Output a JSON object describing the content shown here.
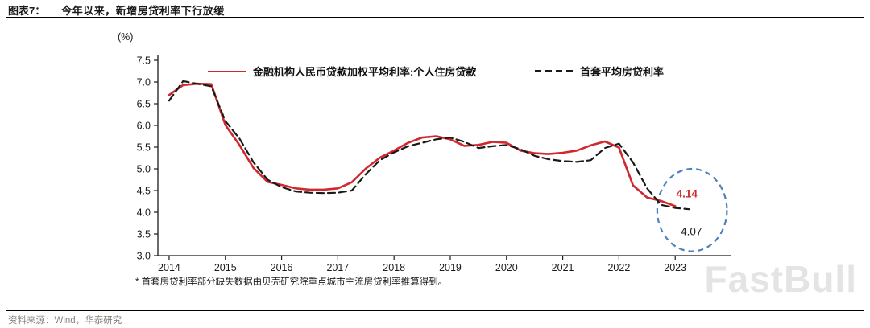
{
  "header": {
    "label": "图表7：",
    "title": "今年以来，新增房贷利率下行放缓"
  },
  "axis_unit": "(%)",
  "legend": {
    "series1": "金融机构人民币贷款加权平均利率:个人住房贷款",
    "series2": "首套平均房贷利率"
  },
  "footnote": "*  首套房贷利率部分缺失数据由贝壳研究院重点城市主流房贷利率推算得到。",
  "source": "资料来源：Wind，华泰研究",
  "watermark": "FastBull",
  "colors": {
    "red_series": "#d0282e",
    "dashed_series": "#1a1a1a",
    "highlight": "#4f81bd",
    "axis": "#1a1a1a"
  },
  "chart_data": {
    "type": "line",
    "title": "新增房贷利率",
    "ylabel": "(%)",
    "grid": false,
    "legend_position": "top-inside",
    "ylim": [
      3.0,
      7.5
    ],
    "ytick_step": 0.5,
    "xlim": [
      2013.8,
      2024.0
    ],
    "xticks": [
      2014,
      2015,
      2016,
      2017,
      2018,
      2019,
      2020,
      2021,
      2022,
      2023
    ],
    "series": [
      {
        "name": "金融机构人民币贷款加权平均利率:个人住房贷款",
        "color": "#d0282e",
        "style": "solid",
        "x": [
          2014,
          2014.25,
          2014.5,
          2014.75,
          2015,
          2015.25,
          2015.5,
          2015.75,
          2016,
          2016.25,
          2016.5,
          2016.75,
          2017,
          2017.25,
          2017.5,
          2017.75,
          2018,
          2018.25,
          2018.5,
          2018.75,
          2019,
          2019.25,
          2019.5,
          2019.75,
          2020,
          2020.25,
          2020.5,
          2020.75,
          2021,
          2021.25,
          2021.5,
          2021.75,
          2022,
          2022.25,
          2022.5,
          2022.75,
          2023
        ],
        "y": [
          6.7,
          6.93,
          6.96,
          6.95,
          6.01,
          5.55,
          5.02,
          4.7,
          4.63,
          4.55,
          4.52,
          4.52,
          4.55,
          4.69,
          5.01,
          5.26,
          5.42,
          5.6,
          5.72,
          5.75,
          5.68,
          5.53,
          5.55,
          5.62,
          5.6,
          5.42,
          5.36,
          5.34,
          5.37,
          5.42,
          5.54,
          5.63,
          5.49,
          4.62,
          4.34,
          4.26,
          4.14
        ]
      },
      {
        "name": "首套平均房贷利率",
        "color": "#1a1a1a",
        "style": "dashed",
        "x": [
          2014,
          2014.25,
          2014.5,
          2014.75,
          2015,
          2015.25,
          2015.5,
          2015.75,
          2016,
          2016.25,
          2016.5,
          2016.75,
          2017,
          2017.25,
          2017.5,
          2017.75,
          2018,
          2018.25,
          2018.5,
          2018.75,
          2019,
          2019.25,
          2019.5,
          2019.75,
          2020,
          2020.25,
          2020.5,
          2020.75,
          2021,
          2021.25,
          2021.5,
          2021.75,
          2022,
          2022.25,
          2022.5,
          2022.75,
          2023,
          2023.25
        ],
        "y": [
          6.57,
          7.02,
          6.96,
          6.9,
          6.1,
          5.7,
          5.15,
          4.75,
          4.58,
          4.48,
          4.45,
          4.44,
          4.45,
          4.5,
          4.88,
          5.2,
          5.38,
          5.52,
          5.6,
          5.68,
          5.72,
          5.62,
          5.48,
          5.52,
          5.55,
          5.45,
          5.3,
          5.22,
          5.18,
          5.16,
          5.2,
          5.48,
          5.58,
          5.15,
          4.55,
          4.17,
          4.1,
          4.07
        ]
      }
    ],
    "annotations": [
      {
        "text": "4.14",
        "x": 2023.02,
        "y": 4.42,
        "color": "#d0282e",
        "bold": true
      },
      {
        "text": "4.07",
        "x": 2023.1,
        "y": 3.55,
        "color": "#1a1a1a",
        "bold": false
      }
    ],
    "highlight_ellipse": {
      "cx": 2023.3,
      "cy": 4.05,
      "rx": 0.62,
      "ry": 0.95,
      "color": "#4f81bd"
    }
  }
}
